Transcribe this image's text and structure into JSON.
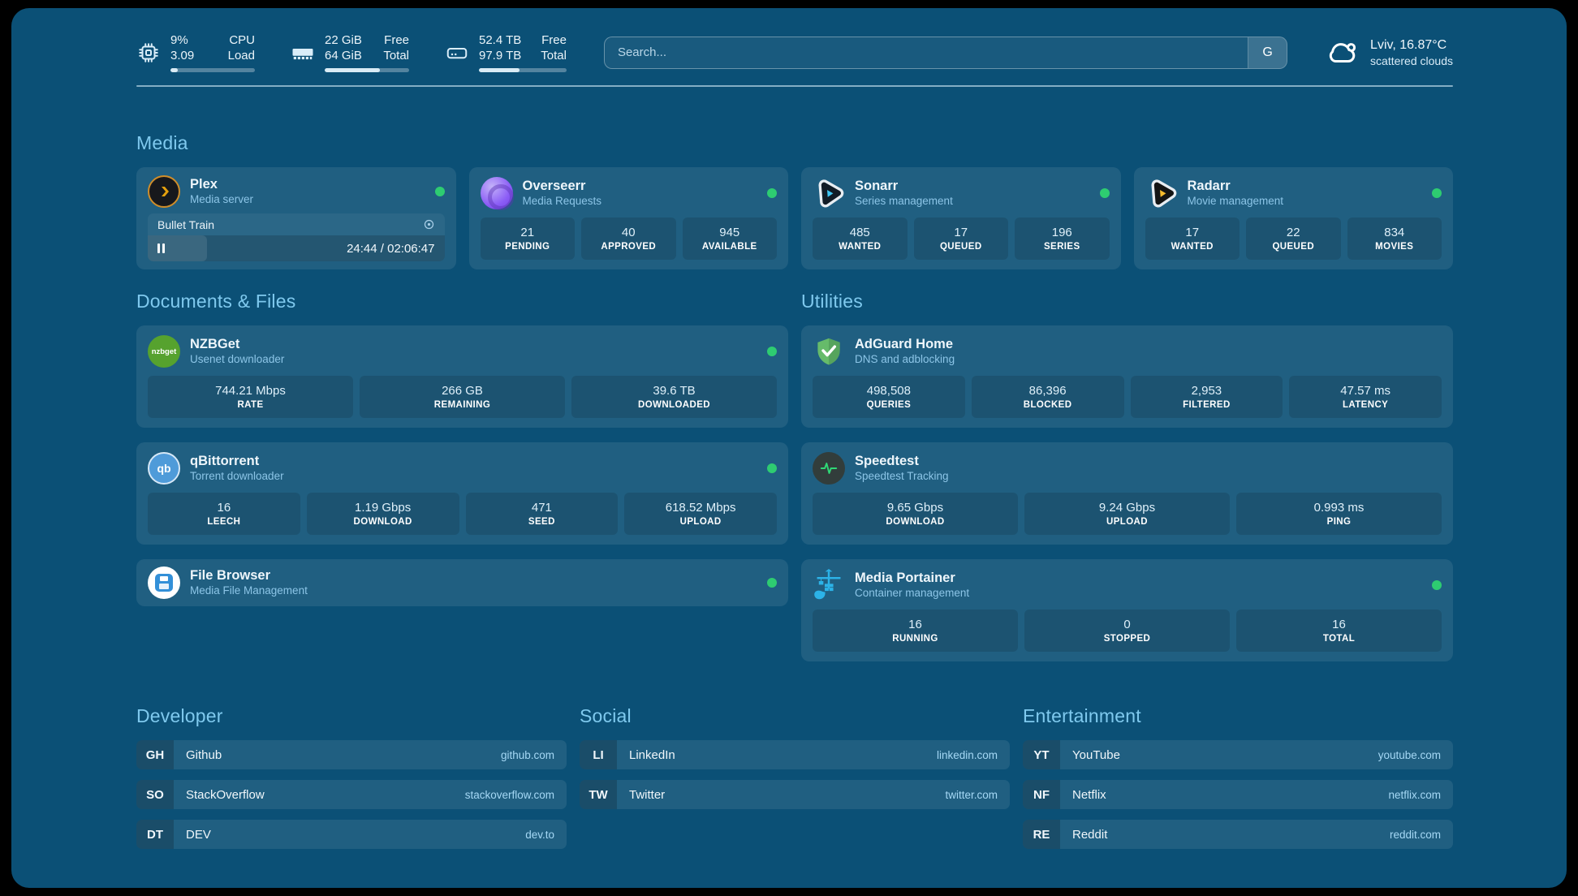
{
  "topbar": {
    "stats": [
      {
        "icon": "cpu-chip-icon",
        "values": [
          "9%",
          "3.09"
        ],
        "labels": [
          "CPU",
          "Load"
        ],
        "progress": 9
      },
      {
        "icon": "memory-icon",
        "values": [
          "22 GiB",
          "64 GiB"
        ],
        "labels": [
          "Free",
          "Total"
        ],
        "progress": 65
      },
      {
        "icon": "hard-drive-icon",
        "values": [
          "52.4 TB",
          "97.9 TB"
        ],
        "labels": [
          "Free",
          "Total"
        ],
        "progress": 46
      }
    ],
    "search": {
      "placeholder": "Search...",
      "engine": "G"
    },
    "weather": {
      "line1": "Lviv, 16.87°C",
      "line2": "scattered clouds"
    }
  },
  "sections": {
    "media": {
      "title": "Media"
    },
    "documents": {
      "title": "Documents & Files"
    },
    "utilities": {
      "title": "Utilities"
    }
  },
  "services": {
    "plex": {
      "name": "Plex",
      "subtitle": "Media server",
      "online": true,
      "now_playing": {
        "title": "Bullet Train",
        "time_display": "24:44 / 02:06:47",
        "progress": 20
      }
    },
    "overseerr": {
      "name": "Overseerr",
      "subtitle": "Media Requests",
      "online": true,
      "stats": [
        {
          "value": "21",
          "label": "PENDING"
        },
        {
          "value": "40",
          "label": "APPROVED"
        },
        {
          "value": "945",
          "label": "AVAILABLE"
        }
      ]
    },
    "sonarr": {
      "name": "Sonarr",
      "subtitle": "Series management",
      "online": true,
      "stats": [
        {
          "value": "485",
          "label": "WANTED"
        },
        {
          "value": "17",
          "label": "QUEUED"
        },
        {
          "value": "196",
          "label": "SERIES"
        }
      ]
    },
    "radarr": {
      "name": "Radarr",
      "subtitle": "Movie management",
      "online": true,
      "stats": [
        {
          "value": "17",
          "label": "WANTED"
        },
        {
          "value": "22",
          "label": "QUEUED"
        },
        {
          "value": "834",
          "label": "MOVIES"
        }
      ]
    },
    "nzbget": {
      "name": "NZBGet",
      "subtitle": "Usenet downloader",
      "online": true,
      "icon_text": "nzbget",
      "stats": [
        {
          "value": "744.21 Mbps",
          "label": "RATE"
        },
        {
          "value": "266 GB",
          "label": "REMAINING"
        },
        {
          "value": "39.6 TB",
          "label": "DOWNLOADED"
        }
      ]
    },
    "qbittorrent": {
      "name": "qBittorrent",
      "subtitle": "Torrent downloader",
      "online": true,
      "icon_text": "qb",
      "stats": [
        {
          "value": "16",
          "label": "LEECH"
        },
        {
          "value": "1.19 Gbps",
          "label": "DOWNLOAD"
        },
        {
          "value": "471",
          "label": "SEED"
        },
        {
          "value": "618.52 Mbps",
          "label": "UPLOAD"
        }
      ]
    },
    "filebrowser": {
      "name": "File Browser",
      "subtitle": "Media File Management",
      "online": true
    },
    "adguard": {
      "name": "AdGuard Home",
      "subtitle": "DNS and adblocking",
      "stats": [
        {
          "value": "498,508",
          "label": "QUERIES"
        },
        {
          "value": "86,396",
          "label": "BLOCKED"
        },
        {
          "value": "2,953",
          "label": "FILTERED"
        },
        {
          "value": "47.57 ms",
          "label": "LATENCY"
        }
      ]
    },
    "speedtest": {
      "name": "Speedtest",
      "subtitle": "Speedtest Tracking",
      "stats": [
        {
          "value": "9.65 Gbps",
          "label": "DOWNLOAD"
        },
        {
          "value": "9.24 Gbps",
          "label": "UPLOAD"
        },
        {
          "value": "0.993 ms",
          "label": "PING"
        }
      ]
    },
    "portainer": {
      "name": "Media Portainer",
      "subtitle": "Container management",
      "online": true,
      "stats": [
        {
          "value": "16",
          "label": "RUNNING"
        },
        {
          "value": "0",
          "label": "STOPPED"
        },
        {
          "value": "16",
          "label": "TOTAL"
        }
      ]
    }
  },
  "bookmarks": [
    {
      "title": "Developer",
      "items": [
        {
          "abbr": "GH",
          "name": "Github",
          "url": "github.com"
        },
        {
          "abbr": "SO",
          "name": "StackOverflow",
          "url": "stackoverflow.com"
        },
        {
          "abbr": "DT",
          "name": "DEV",
          "url": "dev.to"
        }
      ]
    },
    {
      "title": "Social",
      "items": [
        {
          "abbr": "LI",
          "name": "LinkedIn",
          "url": "linkedin.com"
        },
        {
          "abbr": "TW",
          "name": "Twitter",
          "url": "twitter.com"
        }
      ]
    },
    {
      "title": "Entertainment",
      "items": [
        {
          "abbr": "YT",
          "name": "YouTube",
          "url": "youtube.com"
        },
        {
          "abbr": "NF",
          "name": "Netflix",
          "url": "netflix.com"
        },
        {
          "abbr": "RE",
          "name": "Reddit",
          "url": "reddit.com"
        }
      ]
    }
  ],
  "colors": {
    "background": "#0b5076",
    "accent": "#7fc9ee",
    "status_online": "#2ecc71"
  }
}
